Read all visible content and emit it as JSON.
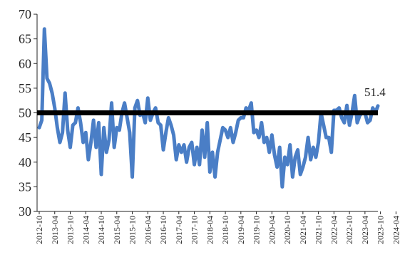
{
  "chart_data": {
    "type": "line",
    "title": "",
    "xlabel": "",
    "ylabel": "",
    "ylim": [
      30,
      70
    ],
    "yticks": [
      30,
      35,
      40,
      45,
      50,
      55,
      60,
      65,
      70
    ],
    "x_start": "2012-10",
    "x_tick_labels": [
      "2012-10",
      "2013-04",
      "2013-10",
      "2014-04",
      "2014-10",
      "2015-04",
      "2015-10",
      "2016-04",
      "2016-10",
      "2017-04",
      "2017-10",
      "2018-04",
      "2018-10",
      "2019-04",
      "2019-10",
      "2020-04",
      "2020-10",
      "2021-04",
      "2021-10",
      "2022-04",
      "2022-10",
      "2023-04",
      "2023-10",
      "2024-04"
    ],
    "reference_line": {
      "value": 50,
      "color": "#000000"
    },
    "end_label": "51.4",
    "series": [
      {
        "color": "#4a7ec6",
        "values": [
          47,
          48.5,
          67,
          57,
          56,
          54,
          51,
          47,
          44,
          46,
          54,
          46.5,
          43,
          47.5,
          48,
          51,
          48,
          44,
          46,
          40.5,
          44,
          48.5,
          43,
          48,
          37.5,
          47,
          42,
          44.5,
          52,
          43,
          47,
          46.5,
          50,
          52,
          49,
          46,
          37,
          51,
          52.5,
          49.5,
          50,
          48,
          53,
          48.5,
          50,
          51,
          48,
          47.5,
          42.5,
          46,
          49,
          47.5,
          45.5,
          40.5,
          43.5,
          42,
          43.5,
          40,
          43,
          44,
          39.5,
          43,
          39.5,
          46.5,
          41,
          48,
          38,
          42,
          37,
          42,
          44.5,
          47,
          46.5,
          45,
          47,
          44,
          46,
          48.5,
          49,
          49,
          51,
          50.5,
          52,
          46,
          46.5,
          45,
          48,
          44,
          45,
          42,
          45.5,
          41.5,
          39,
          43,
          35,
          41,
          39.5,
          43.5,
          37,
          41,
          42.5,
          37.5,
          39,
          41,
          45,
          40.5,
          43,
          41,
          44,
          50,
          47.5,
          45,
          45,
          42,
          50.5,
          50.5,
          51,
          49,
          48,
          51.5,
          47.5,
          50,
          53.5,
          48,
          49.5,
          50,
          50,
          48,
          48.5,
          51,
          50,
          51.4
        ]
      }
    ]
  }
}
